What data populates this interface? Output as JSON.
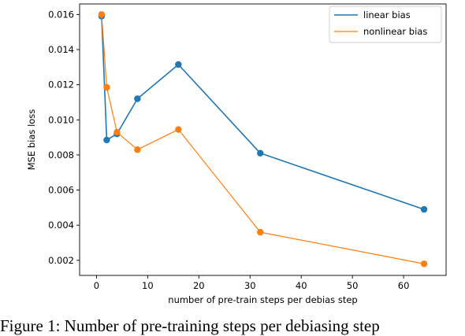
{
  "chart_data": {
    "type": "line",
    "xlabel": "number of pre-train steps per debias step",
    "ylabel": "MSE bias loss",
    "xlim": [
      -3.3,
      68.3
    ],
    "ylim": [
      0.00114,
      0.0166
    ],
    "x_ticks": [
      0,
      10,
      20,
      30,
      40,
      50,
      60
    ],
    "y_ticks": [
      0.002,
      0.004,
      0.006,
      0.008,
      0.01,
      0.012,
      0.014,
      0.016
    ],
    "x_tick_labels": [
      "0",
      "10",
      "20",
      "30",
      "40",
      "50",
      "60"
    ],
    "y_tick_labels": [
      "0.002",
      "0.004",
      "0.006",
      "0.008",
      "0.010",
      "0.012",
      "0.014",
      "0.016"
    ],
    "grid": false,
    "legend_position": "top-right",
    "series": [
      {
        "name": "linear bias",
        "color": "#1f77b4",
        "x": [
          1,
          2,
          4,
          8,
          16,
          32,
          64
        ],
        "y": [
          0.0159,
          0.00885,
          0.0092,
          0.0112,
          0.01315,
          0.0081,
          0.0049
        ]
      },
      {
        "name": "nonlinear bias",
        "color": "#ff7f0e",
        "x": [
          1,
          2,
          4,
          8,
          16,
          32,
          64
        ],
        "y": [
          0.016,
          0.01185,
          0.0093,
          0.0083,
          0.00945,
          0.0036,
          0.0018
        ]
      }
    ]
  },
  "caption": "Figure 1:  Number of pre-training steps per debiasing step"
}
